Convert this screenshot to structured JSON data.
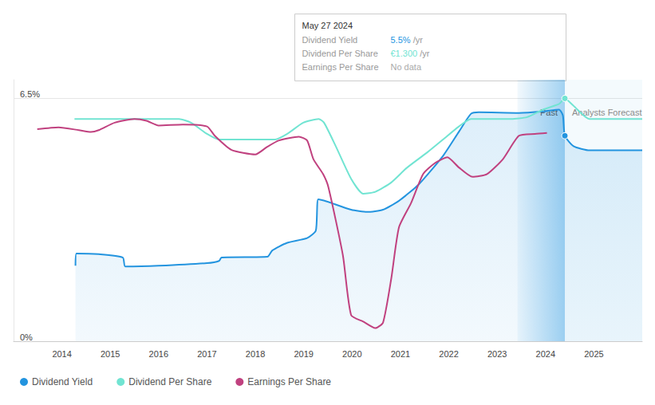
{
  "chart_data": {
    "type": "line",
    "xlim": [
      2013,
      2026
    ],
    "xticks": [
      2014,
      2015,
      2016,
      2017,
      2018,
      2019,
      2020,
      2021,
      2022,
      2023,
      2024,
      2025
    ],
    "ylim": [
      0,
      7
    ],
    "yticks": [
      {
        "value": 0,
        "label": "0%"
      },
      {
        "value": 6.5,
        "label": "6.5%"
      }
    ],
    "y2lim": [
      0,
      1.4
    ],
    "y3lim": [
      0,
      2.8
    ],
    "grid": true,
    "legend": "bottom-left",
    "regions": [
      {
        "label": "Past",
        "from": 2023.42,
        "to": 2024.4
      },
      {
        "label": "Analysts Forecast",
        "from": 2024.4,
        "to": 2026
      }
    ],
    "tooltip": {
      "title": "May 27 2024",
      "x": 2024.4,
      "rows": [
        {
          "label": "Dividend Yield",
          "value": "5.5%",
          "unit": "/yr"
        },
        {
          "label": "Dividend Per Share",
          "value": "€1.300",
          "unit": "/yr"
        },
        {
          "label": "Earnings Per Share",
          "value": "No data"
        }
      ]
    },
    "series": [
      {
        "name": "Dividend Yield",
        "type": "area",
        "color": "#2394df",
        "axis": "y",
        "x": [
          2014.28,
          2014.3,
          2014.76,
          2015.26,
          2015.31,
          2016.0,
          2017.0,
          2017.25,
          2017.3,
          2018.25,
          2018.35,
          2018.65,
          2019.07,
          2019.25,
          2019.3,
          2019.48,
          2019.98,
          2020.31,
          2020.64,
          2020.97,
          2021.38,
          2021.88,
          2022.21,
          2022.46,
          2022.62,
          2023.45,
          2023.95,
          2024.28,
          2024.36,
          2024.4,
          2024.58,
          2024.91,
          2026
        ],
        "values": [
          2.02,
          2.35,
          2.33,
          2.24,
          2.0,
          2.02,
          2.09,
          2.15,
          2.24,
          2.26,
          2.43,
          2.63,
          2.76,
          2.96,
          3.8,
          3.74,
          3.52,
          3.46,
          3.52,
          3.76,
          4.2,
          4.96,
          5.61,
          6.09,
          6.13,
          6.11,
          6.15,
          6.2,
          6.04,
          5.5,
          5.22,
          5.11,
          5.11
        ]
      },
      {
        "name": "Dividend Per Share",
        "type": "line",
        "color": "#71e4d2",
        "axis": "y2",
        "x": [
          2014.26,
          2016.42,
          2016.67,
          2017.0,
          2017.25,
          2018.41,
          2018.66,
          2018.99,
          2019.31,
          2019.42,
          2019.67,
          2019.98,
          2020.23,
          2020.48,
          2020.81,
          2021.14,
          2021.55,
          2021.88,
          2022.21,
          2022.46,
          2023.29,
          2023.62,
          2023.95,
          2024.28,
          2024.4,
          2024.58,
          2024.91,
          2026
        ],
        "values": [
          1.19,
          1.19,
          1.17,
          1.11,
          1.08,
          1.08,
          1.11,
          1.17,
          1.19,
          1.17,
          1.04,
          0.87,
          0.79,
          0.8,
          0.85,
          0.93,
          1.01,
          1.08,
          1.15,
          1.19,
          1.19,
          1.2,
          1.24,
          1.27,
          1.3,
          1.26,
          1.19,
          1.19
        ]
      },
      {
        "name": "Earnings Per Share",
        "type": "line",
        "color": "#c0417f",
        "axis": "y3",
        "x": [
          2013.49,
          2013.93,
          2014.35,
          2014.6,
          2014.76,
          2015.09,
          2015.5,
          2015.75,
          2016.0,
          2016.5,
          2017.0,
          2017.16,
          2017.5,
          2018.0,
          2018.24,
          2018.49,
          2018.9,
          2019.07,
          2019.2,
          2019.4,
          2019.51,
          2019.81,
          2019.98,
          2020.23,
          2020.48,
          2020.64,
          2020.81,
          2020.97,
          2021.22,
          2021.47,
          2021.72,
          2021.97,
          2022.21,
          2022.49,
          2022.79,
          2023.12,
          2023.45,
          2023.78,
          2024.03
        ],
        "values": [
          2.27,
          2.29,
          2.26,
          2.24,
          2.26,
          2.34,
          2.38,
          2.36,
          2.31,
          2.32,
          2.3,
          2.2,
          2.05,
          2.0,
          2.08,
          2.15,
          2.19,
          2.15,
          1.95,
          1.79,
          1.65,
          0.92,
          0.28,
          0.21,
          0.14,
          0.2,
          0.67,
          1.22,
          1.48,
          1.79,
          1.91,
          1.97,
          1.86,
          1.76,
          1.79,
          1.95,
          2.2,
          2.22,
          2.23
        ]
      }
    ]
  }
}
